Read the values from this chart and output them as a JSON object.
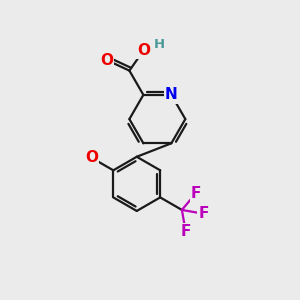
{
  "background_color": "#ebebeb",
  "bond_color": "#1a1a1a",
  "bond_width": 1.6,
  "atom_colors": {
    "O": "#ee0000",
    "N": "#0000ee",
    "F": "#bb00bb",
    "C": "#1a1a1a",
    "H": "#4a9999"
  },
  "font_size_atom": 11,
  "font_size_H": 9.5,
  "figsize": [
    3.0,
    3.0
  ],
  "dpi": 100
}
